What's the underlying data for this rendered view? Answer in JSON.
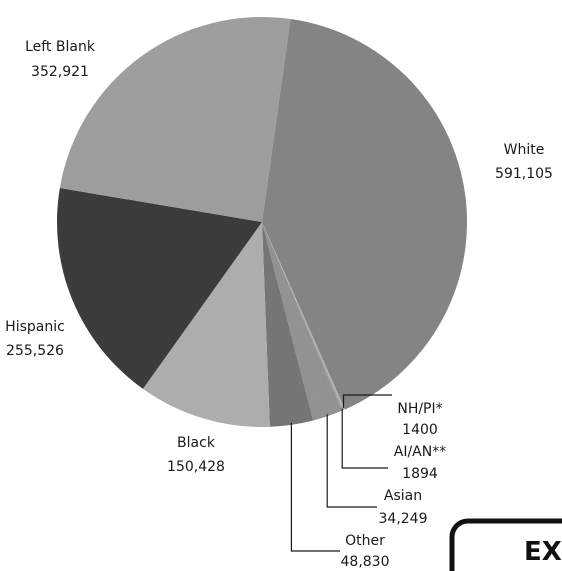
{
  "chart_data": {
    "type": "pie",
    "title": "",
    "slices": [
      {
        "label": "White",
        "value": 591105,
        "display": "591,105",
        "color": "#8a8a8a"
      },
      {
        "label": "NH/PI*",
        "value": 1400,
        "display": "1400",
        "color": "#bdbdbd"
      },
      {
        "label": "AI/AN**",
        "value": 1894,
        "display": "1894",
        "color": "#a9a9a9"
      },
      {
        "label": "Asian",
        "value": 34249,
        "display": "34,249",
        "color": "#989898"
      },
      {
        "label": "Other",
        "value": 48830,
        "display": "48,830",
        "color": "#7a7a7a"
      },
      {
        "label": "Black",
        "value": 150428,
        "display": "150,428",
        "color": "#b4b4b4"
      },
      {
        "label": "Hispanic",
        "value": 255526,
        "display": "255,526",
        "color": "#3e3e3e"
      },
      {
        "label": "Left Blank",
        "value": 352921,
        "display": "352,921",
        "color": "#a4a4a4"
      }
    ]
  },
  "corner_box": {
    "text": "EX"
  }
}
